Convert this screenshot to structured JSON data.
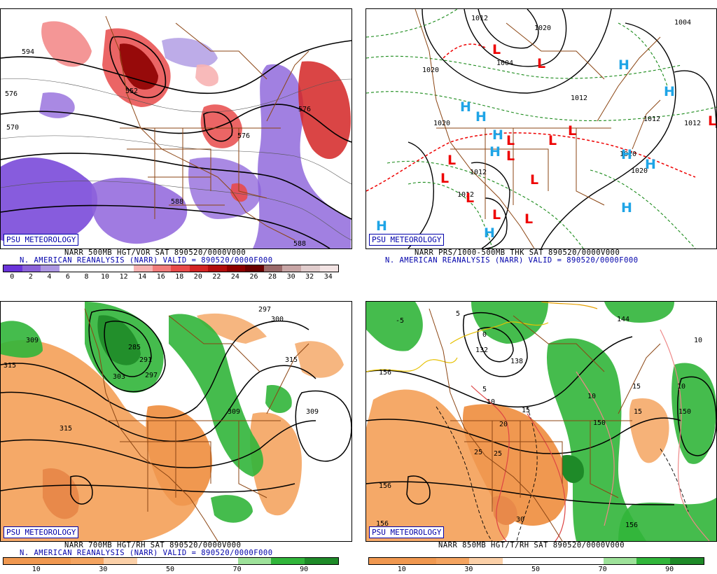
{
  "badge": "PSU METEOROLOGY",
  "panels": [
    {
      "title": "NARR 500MB HGT/VOR SAT 890520/0000V000",
      "subtitle": "N. AMERICAN REANALYSIS (NARR) VALID = 890520/0000F000",
      "scale_labels": [
        "0",
        "2",
        "4",
        "6",
        "8",
        "10",
        "12",
        "14",
        "16",
        "18",
        "20",
        "22",
        "24",
        "26",
        "28",
        "30",
        "32",
        "34"
      ],
      "scale_colors": [
        "#6a34d9",
        "#8a62d9",
        "#ad97e2",
        "#ffffff",
        "#ffffff",
        "#ffffff",
        "#ffffff",
        "#f7b3b3",
        "#f17c7c",
        "#e84a4a",
        "#d42424",
        "#b30d0d",
        "#8e0000",
        "#6a0000",
        "#9a6a6a",
        "#c7a5a5",
        "#e0cccc",
        "#f2e3e3"
      ],
      "contour_labels": [
        "594",
        "576",
        "570",
        "552",
        "576",
        "576",
        "588",
        "588"
      ]
    },
    {
      "title": "NARR PRS/1000-500MB THK SAT 890520/0000V000",
      "subtitle": "N. AMERICAN REANALYSIS (NARR) VALID = 890520/0000F000",
      "contour_labels": [
        "1012",
        "1020",
        "1004",
        "1020",
        "1012",
        "1012",
        "1020",
        "1012",
        "1020",
        "1012",
        "1012",
        "1020",
        "1004"
      ],
      "highs": [
        "H",
        "H",
        "H",
        "H",
        "H",
        "H",
        "H",
        "H",
        "H",
        "H",
        "H"
      ],
      "lows": [
        "L",
        "L",
        "L",
        "L",
        "L",
        "L",
        "L",
        "L",
        "L",
        "L",
        "L",
        "L",
        "L"
      ]
    },
    {
      "title": "NARR 700MB HGT/RH SAT 890520/0000V000",
      "subtitle": "N. AMERICAN REANALYSIS (NARR) VALID = 890520/0000F000",
      "scale_labels": [
        "10",
        "30",
        "50",
        "70",
        "90"
      ],
      "contour_labels": [
        "309",
        "285",
        "291",
        "297",
        "303",
        "297",
        "300",
        "315",
        "315",
        "309",
        "315",
        "309"
      ]
    },
    {
      "title": "NARR 850MB HGT/T/RH SAT 890520/0000V000",
      "scale_labels": [
        "10",
        "30",
        "50",
        "70",
        "90"
      ],
      "contour_labels": [
        "-5",
        "5",
        "132",
        "138",
        "144",
        "5",
        "156",
        "15",
        "0",
        "10",
        "150",
        "10",
        "20",
        "15",
        "25",
        "25",
        "30",
        "156",
        "156",
        "156",
        "150",
        "15",
        "10",
        "10"
      ]
    }
  ]
}
